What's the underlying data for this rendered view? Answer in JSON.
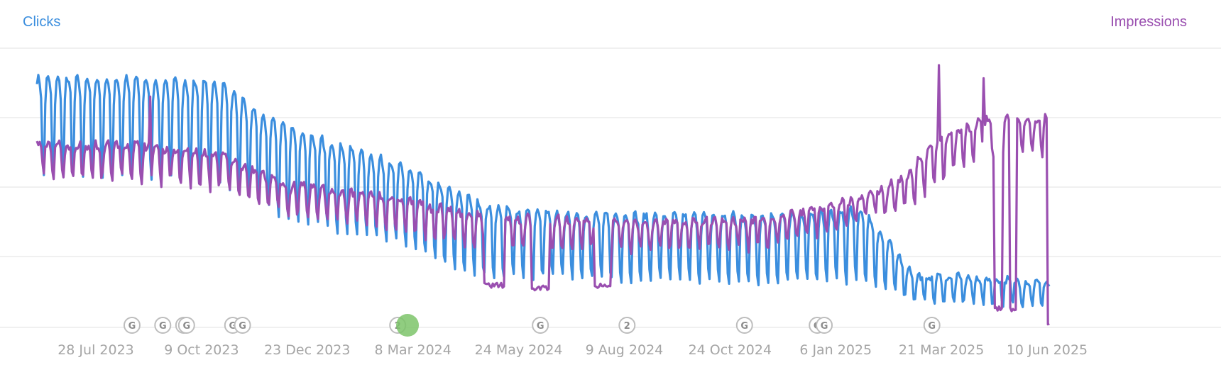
{
  "chart_data": {
    "type": "line",
    "x_tick_labels": [
      "28 Jul 2023",
      "9 Oct 2023",
      "23 Dec 2023",
      "8 Mar 2024",
      "24 May 2024",
      "9 Aug 2024",
      "24 Oct 2024",
      "6 Jan 2025",
      "21 Mar 2025",
      "10 Jun 2025"
    ],
    "x_range": [
      "2023-06-21",
      "2025-06-21"
    ],
    "grid": "horizontal",
    "series": [
      {
        "name": "Clicks",
        "color": "#3b8ede",
        "axis": "left",
        "pattern": "weekly",
        "trend_week_peaks": [
          [
            "2023-06-21",
            0.95
          ],
          [
            "2023-09-01",
            0.95
          ],
          [
            "2023-11-01",
            0.93
          ],
          [
            "2023-12-01",
            0.8
          ],
          [
            "2024-01-10",
            0.72
          ],
          [
            "2024-03-01",
            0.63
          ],
          [
            "2024-04-15",
            0.52
          ],
          [
            "2024-05-10",
            0.46
          ],
          [
            "2024-06-15",
            0.44
          ],
          [
            "2024-09-01",
            0.43
          ],
          [
            "2024-12-01",
            0.43
          ],
          [
            "2025-02-01",
            0.45
          ],
          [
            "2025-03-10",
            0.2
          ],
          [
            "2025-05-01",
            0.19
          ],
          [
            "2025-06-14",
            0.17
          ]
        ],
        "trend_week_troughs": [
          [
            "2023-06-21",
            0.58
          ],
          [
            "2023-09-01",
            0.58
          ],
          [
            "2023-11-01",
            0.55
          ],
          [
            "2023-12-15",
            0.42
          ],
          [
            "2024-02-01",
            0.36
          ],
          [
            "2024-03-01",
            0.34
          ],
          [
            "2024-04-15",
            0.22
          ],
          [
            "2024-05-10",
            0.2
          ],
          [
            "2024-09-01",
            0.18
          ],
          [
            "2024-12-01",
            0.17
          ],
          [
            "2025-02-01",
            0.18
          ],
          [
            "2025-03-10",
            0.1
          ],
          [
            "2025-05-01",
            0.09
          ],
          [
            "2025-06-14",
            0.09
          ]
        ]
      },
      {
        "name": "Impressions",
        "color": "#9a4fb0",
        "axis": "right",
        "pattern": "weekly",
        "trend_week_peaks": [
          [
            "2023-06-21",
            0.7
          ],
          [
            "2023-09-01",
            0.7
          ],
          [
            "2023-11-01",
            0.66
          ],
          [
            "2023-12-15",
            0.55
          ],
          [
            "2024-03-01",
            0.5
          ],
          [
            "2024-05-01",
            0.43
          ],
          [
            "2024-09-01",
            0.4
          ],
          [
            "2024-12-01",
            0.42
          ],
          [
            "2025-02-01",
            0.5
          ],
          [
            "2025-03-05",
            0.58
          ],
          [
            "2025-03-20",
            0.7
          ],
          [
            "2025-05-01",
            0.8
          ],
          [
            "2025-06-14",
            0.8
          ]
        ],
        "trend_week_troughs": [
          [
            "2023-06-21",
            0.56
          ],
          [
            "2023-09-01",
            0.56
          ],
          [
            "2023-11-01",
            0.52
          ],
          [
            "2023-12-15",
            0.42
          ],
          [
            "2024-03-01",
            0.36
          ],
          [
            "2024-05-01",
            0.3
          ],
          [
            "2024-09-01",
            0.28
          ],
          [
            "2024-12-01",
            0.3
          ],
          [
            "2025-02-01",
            0.4
          ],
          [
            "2025-03-05",
            0.46
          ],
          [
            "2025-03-20",
            0.52
          ],
          [
            "2025-05-01",
            0.66
          ],
          [
            "2025-06-14",
            0.64
          ]
        ],
        "dips": [
          {
            "from": "2024-05-06",
            "to": "2024-05-20",
            "value": 0.15
          },
          {
            "from": "2024-06-09",
            "to": "2024-06-21",
            "value": 0.14
          },
          {
            "from": "2024-07-24",
            "to": "2024-08-04",
            "value": 0.15
          },
          {
            "from": "2025-05-06",
            "to": "2025-05-11",
            "value": 0.06
          },
          {
            "from": "2025-05-17",
            "to": "2025-05-21",
            "value": 0.06
          },
          {
            "from": "2025-06-13",
            "to": "2025-06-14",
            "value": 0.0
          }
        ],
        "spikes": [
          {
            "date": "2025-03-27",
            "value": 1.0
          },
          {
            "date": "2025-04-28",
            "value": 0.95
          },
          {
            "date": "2023-09-10",
            "value": 0.88
          }
        ]
      }
    ],
    "annotations": [
      {
        "date": "2023-08-28",
        "label": "G"
      },
      {
        "date": "2023-09-19",
        "label": "G"
      },
      {
        "date": "2023-10-04",
        "label": "G"
      },
      {
        "date": "2023-10-06",
        "label": "G"
      },
      {
        "date": "2023-11-08",
        "label": "G"
      },
      {
        "date": "2023-11-15",
        "label": "G"
      },
      {
        "date": "2024-03-05",
        "label": "2"
      },
      {
        "date": "2024-03-12",
        "label": "",
        "highlight": true,
        "color": "#7dc46a"
      },
      {
        "date": "2024-06-15",
        "label": "G"
      },
      {
        "date": "2024-08-16",
        "label": "2"
      },
      {
        "date": "2024-11-08",
        "label": "G"
      },
      {
        "date": "2024-12-30",
        "label": "G"
      },
      {
        "date": "2025-01-04",
        "label": "G"
      },
      {
        "date": "2025-03-22",
        "label": "G"
      }
    ]
  },
  "legend": {
    "left_label": "Clicks",
    "right_label": "Impressions"
  }
}
